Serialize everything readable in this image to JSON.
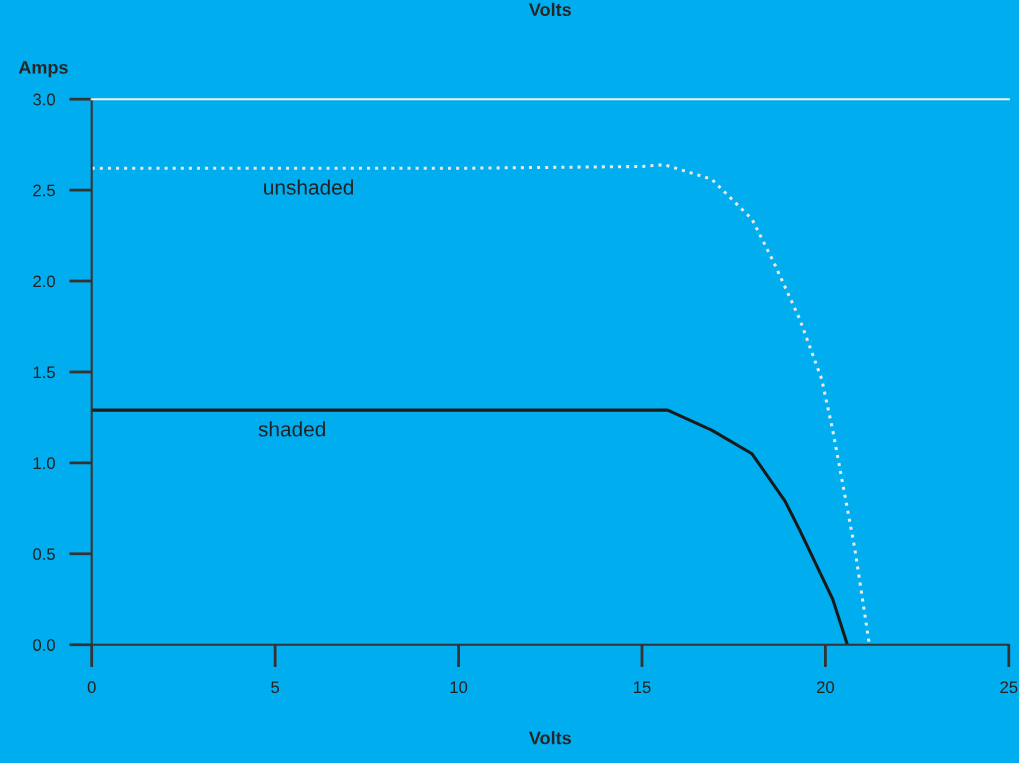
{
  "chart_data": {
    "type": "line",
    "title": "Volts",
    "xlabel": "Volts",
    "ylabel": "Amps",
    "xlim": [
      0,
      25
    ],
    "xticks": [
      0,
      5,
      10,
      15,
      20,
      25
    ],
    "ylim": [
      0,
      3.0
    ],
    "yticks": [
      {
        "value": 0,
        "label": "0.0"
      },
      {
        "value": 0.5,
        "label": "0.5"
      },
      {
        "value": 1.0,
        "label": "1.0"
      },
      {
        "value": 1.5,
        "label": "1.5"
      },
      {
        "value": 2.0,
        "label": "2.0"
      },
      {
        "value": 2.5,
        "label": "2.5"
      },
      {
        "value": 3.0,
        "label": "3.0"
      }
    ],
    "grid": false,
    "legend": false,
    "marker": "none",
    "series": [
      {
        "name": "unshaded",
        "color": "#e8e8e8",
        "line_style": "dotted",
        "x": [
          0,
          5,
          10,
          15,
          15.6,
          16.9,
          18.0,
          18.6,
          19.3,
          19.9,
          20.2,
          20.8,
          21.2
        ],
        "values": [
          2.62,
          2.62,
          2.62,
          2.63,
          2.64,
          2.56,
          2.34,
          2.1,
          1.79,
          1.46,
          1.18,
          0.53,
          0
        ]
      },
      {
        "name": "shaded",
        "color": "#1a1a1a",
        "line_style": "solid",
        "x": [
          0,
          5,
          10,
          15,
          15.7,
          16.9,
          18.0,
          18.9,
          19.3,
          20.2,
          20.6
        ],
        "values": [
          1.29,
          1.29,
          1.29,
          1.29,
          1.29,
          1.18,
          1.05,
          0.79,
          0.63,
          0.25,
          0
        ]
      }
    ]
  }
}
